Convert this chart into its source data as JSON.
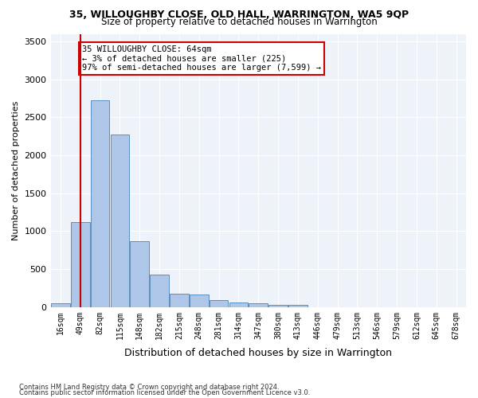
{
  "title": "35, WILLOUGHBY CLOSE, OLD HALL, WARRINGTON, WA5 9QP",
  "subtitle": "Size of property relative to detached houses in Warrington",
  "xlabel": "Distribution of detached houses by size in Warrington",
  "ylabel": "Number of detached properties",
  "bar_values": [
    55,
    1115,
    2720,
    2270,
    870,
    425,
    175,
    165,
    95,
    65,
    55,
    30,
    25,
    0,
    0,
    0,
    0,
    0,
    0,
    0,
    0
  ],
  "bar_labels": [
    "16sqm",
    "49sqm",
    "82sqm",
    "115sqm",
    "148sqm",
    "182sqm",
    "215sqm",
    "248sqm",
    "281sqm",
    "314sqm",
    "347sqm",
    "380sqm",
    "413sqm",
    "446sqm",
    "479sqm",
    "513sqm",
    "546sqm",
    "579sqm",
    "612sqm",
    "645sqm",
    "678sqm"
  ],
  "bar_color": "#aec6e8",
  "bar_edge_color": "#5a8fc0",
  "vline_x": 1,
  "vline_color": "#cc0000",
  "annotation_line1": "35 WILLOUGHBY CLOSE: 64sqm",
  "annotation_line2": "← 3% of detached houses are smaller (225)",
  "annotation_line3": "97% of semi-detached houses are larger (7,599) →",
  "annotation_box_color": "#cc0000",
  "ylim": [
    0,
    3600
  ],
  "yticks": [
    0,
    500,
    1000,
    1500,
    2000,
    2500,
    3000,
    3500
  ],
  "background_color": "#eef3fa",
  "grid_color": "#ffffff",
  "footer_line1": "Contains HM Land Registry data © Crown copyright and database right 2024.",
  "footer_line2": "Contains public sector information licensed under the Open Government Licence v3.0."
}
